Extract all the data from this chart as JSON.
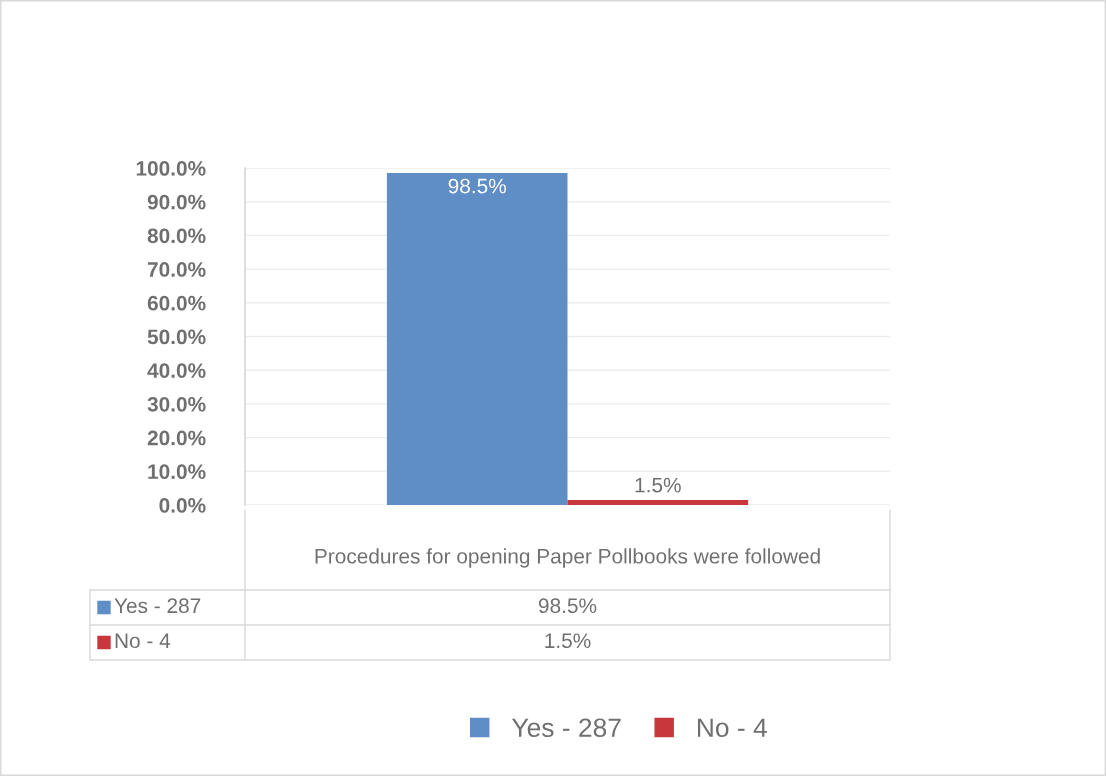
{
  "chart_data": {
    "type": "bar",
    "categories": [
      "Procedures for opening Paper Pollbooks were followed"
    ],
    "series": [
      {
        "name": "Yes - 287",
        "color": "#5f8dc6",
        "values": [
          98.5
        ],
        "value_labels": [
          "98.5%"
        ]
      },
      {
        "name": "No - 4",
        "color": "#c8373c",
        "values": [
          1.5
        ],
        "value_labels": [
          "1.5%"
        ]
      }
    ],
    "ylim": [
      0,
      100
    ],
    "yticks": [
      {
        "value": 0,
        "label": "0.0%"
      },
      {
        "value": 10,
        "label": "10.0%"
      },
      {
        "value": 20,
        "label": "20.0%"
      },
      {
        "value": 30,
        "label": "30.0%"
      },
      {
        "value": 40,
        "label": "40.0%"
      },
      {
        "value": 50,
        "label": "50.0%"
      },
      {
        "value": 60,
        "label": "60.0%"
      },
      {
        "value": 70,
        "label": "70.0%"
      },
      {
        "value": 80,
        "label": "80.0%"
      },
      {
        "value": 90,
        "label": "90.0%"
      },
      {
        "value": 100,
        "label": "100.0%"
      }
    ],
    "grid": "y",
    "legend": "bottom"
  }
}
